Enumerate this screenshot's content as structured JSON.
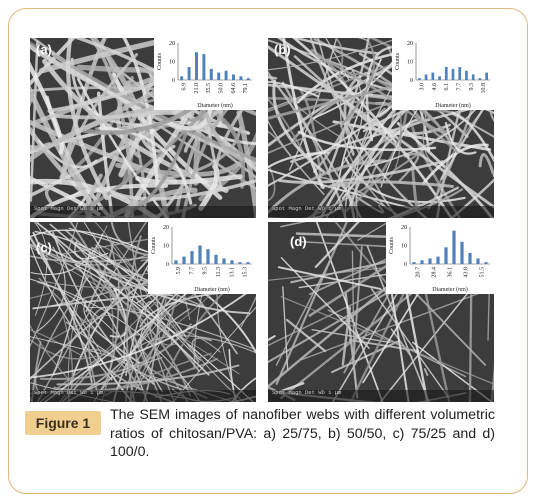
{
  "figure": {
    "label": "Figure 1",
    "caption": "The SEM images of nanofiber webs with different volumetric ratios of chitosan/PVA: a) 25/75, b) 50/50, c) 75/25 and d) 100/0."
  },
  "panels": [
    {
      "label": "(a)",
      "scale_text": "Spot Magn   Det WD 1 μm",
      "inset": {
        "ylabel": "Counts",
        "xlabel": "Diameter (nm)",
        "yticks": [
          "0",
          "10",
          "20"
        ],
        "ymax": 20,
        "xticks": [
          "6.9",
          "21.0",
          "35.5",
          "50.0",
          "64.6",
          "79.1"
        ],
        "values": [
          2,
          7,
          15,
          14,
          6,
          4,
          5,
          3,
          2,
          1
        ]
      }
    },
    {
      "label": "(b)",
      "scale_text": "Spot Magn   Det WD 1 μm",
      "inset": {
        "ylabel": "Counts",
        "xlabel": "Diameter (nm)",
        "yticks": [
          "0",
          "10",
          "20"
        ],
        "ymax": 20,
        "xticks": [
          "3.0",
          "4.6",
          "6.1",
          "7.7",
          "9.3",
          "10.8"
        ],
        "values": [
          1,
          3,
          4,
          2,
          7,
          6,
          7,
          5,
          3,
          1,
          4
        ]
      }
    },
    {
      "label": "(c)",
      "scale_text": "Spot Magn   Det WD 1 μm",
      "inset": {
        "ylabel": "Counts",
        "xlabel": "Diameter (nm)",
        "yticks": [
          "0",
          "10",
          "20"
        ],
        "ymax": 20,
        "xticks": [
          "5.9",
          "7.7",
          "9.5",
          "11.3",
          "13.1",
          "15.3"
        ],
        "values": [
          2,
          4,
          7,
          10,
          8,
          5,
          3,
          2,
          1,
          1
        ]
      }
    },
    {
      "label": "(d)",
      "scale_text": "Spot Magn   Det WD 1 μm",
      "inset": {
        "ylabel": "Counts",
        "xlabel": "Diameter (nm)",
        "yticks": [
          "0",
          "10",
          "20"
        ],
        "ymax": 20,
        "xticks": [
          "20.7",
          "28.4",
          "36.1",
          "43.8",
          "51.5"
        ],
        "values": [
          1,
          2,
          3,
          4,
          9,
          18,
          12,
          6,
          3,
          1
        ]
      }
    }
  ]
}
